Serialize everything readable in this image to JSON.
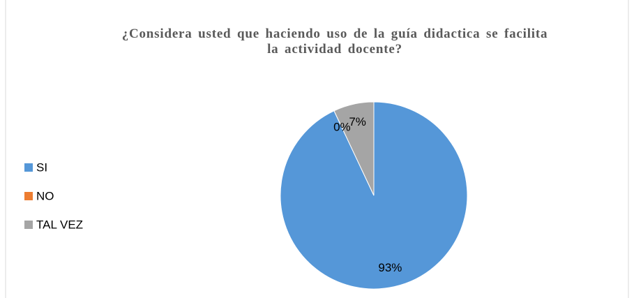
{
  "chart_data": {
    "type": "pie",
    "title": "¿Considera usted que haciendo uso de la guía didactica se facilita la actividad docente?",
    "categories": [
      "SI",
      "NO",
      "TAL VEZ"
    ],
    "values": [
      93,
      0,
      7
    ],
    "value_labels": [
      "93%",
      "0%",
      "7%"
    ],
    "colors": [
      "#5597d8",
      "#ed7d31",
      "#a5a5a5"
    ],
    "legend": "left"
  }
}
